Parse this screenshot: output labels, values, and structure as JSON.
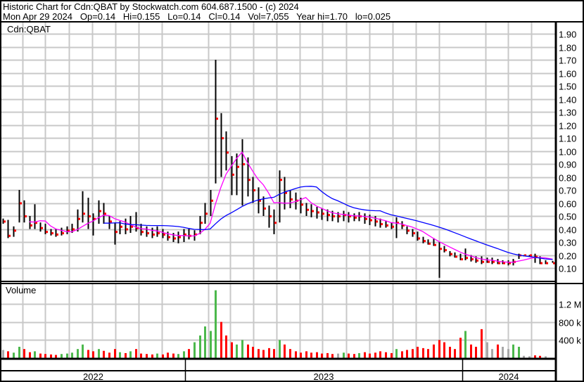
{
  "header": {
    "title": "Historic Chart for Cdn:QBAT by Stockwatch.com 604.687.1500 - (c) 2024",
    "quote": "Mon Apr 29 2024   Op=0.14   Hi=0.155   Lo=0.14   Cl=0.14   Vol=7,055   Year hi=1.70   lo=0.025"
  },
  "chart_data": {
    "type": "ohlc-with-volume",
    "symbol_label": "Cdn:QBAT",
    "volume_label": "Volume",
    "price_axis": {
      "ticks": [
        "0.10",
        "0.20",
        "0.30",
        "0.40",
        "0.50",
        "0.60",
        "0.70",
        "0.80",
        "0.90",
        "1.00",
        "1.10",
        "1.20",
        "1.30",
        "1.40",
        "1.50",
        "1.60",
        "1.70",
        "1.80",
        "1.90"
      ],
      "range": [
        0.1,
        1.9
      ],
      "position": "right"
    },
    "volume_axis": {
      "ticks": [
        {
          "value": 400000,
          "label": "400 k"
        },
        {
          "value": 800000,
          "label": "800 k"
        },
        {
          "value": 1200000,
          "label": "1.2 M"
        }
      ]
    },
    "x_axis": {
      "years": [
        "2022",
        "2023",
        "2024"
      ],
      "range": [
        "2022-05-06",
        "2024-04-29"
      ]
    },
    "grid": true,
    "colors": {
      "price_bar": "#000000",
      "close_mark": "#ff0000",
      "ma_short": "#ff00ff",
      "ma_long": "#0000ff",
      "volume_up": "#4cb84c",
      "volume_down": "#ff0000",
      "volume_flat": "#a8a8a8",
      "grid": "#c8c8c8"
    },
    "moving_averages": [
      {
        "color": "ma_short",
        "weeks": 6
      },
      {
        "color": "ma_long",
        "weeks": 20
      }
    ],
    "columns": [
      "date",
      "high",
      "low",
      "close",
      "volume"
    ],
    "rows": [
      [
        "2022-05-06",
        0.48,
        0.44,
        0.46,
        180000
      ],
      [
        "2022-05-13",
        0.47,
        0.33,
        0.35,
        150000
      ],
      [
        "2022-05-20",
        0.42,
        0.34,
        0.39,
        120000
      ],
      [
        "2022-05-27",
        0.7,
        0.45,
        0.6,
        250000
      ],
      [
        "2022-06-03",
        0.62,
        0.45,
        0.5,
        200000
      ],
      [
        "2022-06-10",
        0.5,
        0.4,
        0.43,
        130000
      ],
      [
        "2022-06-17",
        0.59,
        0.4,
        0.45,
        150000
      ],
      [
        "2022-06-24",
        0.45,
        0.38,
        0.41,
        100000
      ],
      [
        "2022-07-01",
        0.44,
        0.36,
        0.38,
        90000
      ],
      [
        "2022-07-08",
        0.4,
        0.35,
        0.37,
        80000
      ],
      [
        "2022-07-15",
        0.4,
        0.34,
        0.36,
        70000
      ],
      [
        "2022-07-22",
        0.41,
        0.35,
        0.37,
        90000
      ],
      [
        "2022-07-29",
        0.42,
        0.36,
        0.39,
        100000
      ],
      [
        "2022-08-05",
        0.44,
        0.37,
        0.4,
        120000
      ],
      [
        "2022-08-12",
        0.55,
        0.38,
        0.48,
        200000
      ],
      [
        "2022-08-19",
        0.69,
        0.45,
        0.52,
        300000
      ],
      [
        "2022-08-26",
        0.64,
        0.4,
        0.5,
        180000
      ],
      [
        "2022-09-02",
        0.52,
        0.35,
        0.48,
        150000
      ],
      [
        "2022-09-09",
        0.62,
        0.44,
        0.54,
        200000
      ],
      [
        "2022-09-16",
        0.6,
        0.44,
        0.52,
        160000
      ],
      [
        "2022-09-23",
        0.5,
        0.4,
        0.46,
        120000
      ],
      [
        "2022-09-30",
        0.45,
        0.28,
        0.38,
        200000
      ],
      [
        "2022-10-07",
        0.46,
        0.36,
        0.42,
        130000
      ],
      [
        "2022-10-14",
        0.48,
        0.36,
        0.4,
        110000
      ],
      [
        "2022-10-21",
        0.5,
        0.37,
        0.42,
        150000
      ],
      [
        "2022-10-28",
        0.53,
        0.38,
        0.41,
        200000
      ],
      [
        "2022-11-04",
        0.44,
        0.35,
        0.38,
        100000
      ],
      [
        "2022-11-11",
        0.42,
        0.34,
        0.37,
        90000
      ],
      [
        "2022-11-18",
        0.41,
        0.33,
        0.36,
        80000
      ],
      [
        "2022-11-25",
        0.42,
        0.34,
        0.37,
        100000
      ],
      [
        "2022-12-02",
        0.4,
        0.33,
        0.36,
        80000
      ],
      [
        "2022-12-09",
        0.38,
        0.31,
        0.34,
        120000
      ],
      [
        "2022-12-16",
        0.37,
        0.3,
        0.33,
        100000
      ],
      [
        "2022-12-23",
        0.38,
        0.29,
        0.34,
        90000
      ],
      [
        "2022-12-30",
        0.4,
        0.3,
        0.36,
        150000
      ],
      [
        "2023-01-06",
        0.4,
        0.32,
        0.35,
        200000
      ],
      [
        "2023-01-13",
        0.39,
        0.31,
        0.36,
        350000
      ],
      [
        "2023-01-20",
        0.5,
        0.36,
        0.45,
        500000
      ],
      [
        "2023-01-27",
        0.6,
        0.44,
        0.52,
        700000
      ],
      [
        "2023-02-03",
        0.7,
        0.5,
        0.62,
        600000
      ],
      [
        "2023-02-10",
        1.7,
        0.75,
        1.25,
        1500000
      ],
      [
        "2023-02-17",
        1.29,
        0.8,
        1.1,
        800000
      ],
      [
        "2023-02-24",
        1.15,
        0.85,
        0.99,
        500000
      ],
      [
        "2023-03-03",
        0.96,
        0.66,
        0.82,
        350000
      ],
      [
        "2023-03-10",
        0.98,
        0.66,
        0.88,
        300000
      ],
      [
        "2023-03-17",
        1.09,
        0.58,
        0.9,
        400000
      ],
      [
        "2023-03-24",
        0.95,
        0.65,
        0.78,
        300000
      ],
      [
        "2023-03-31",
        0.8,
        0.6,
        0.7,
        250000
      ],
      [
        "2023-04-07",
        0.72,
        0.52,
        0.62,
        200000
      ],
      [
        "2023-04-14",
        0.65,
        0.5,
        0.56,
        180000
      ],
      [
        "2023-04-21",
        0.58,
        0.41,
        0.5,
        220000
      ],
      [
        "2023-04-28",
        0.55,
        0.36,
        0.45,
        200000
      ],
      [
        "2023-05-05",
        0.85,
        0.45,
        0.78,
        400000
      ],
      [
        "2023-05-12",
        0.8,
        0.55,
        0.68,
        300000
      ],
      [
        "2023-05-19",
        0.7,
        0.56,
        0.63,
        200000
      ],
      [
        "2023-05-26",
        0.68,
        0.55,
        0.62,
        150000
      ],
      [
        "2023-06-02",
        0.64,
        0.52,
        0.59,
        120000
      ],
      [
        "2023-06-09",
        0.6,
        0.5,
        0.55,
        150000
      ],
      [
        "2023-06-16",
        0.59,
        0.49,
        0.54,
        120000
      ],
      [
        "2023-06-23",
        0.57,
        0.48,
        0.53,
        130000
      ],
      [
        "2023-06-30",
        0.56,
        0.47,
        0.52,
        100000
      ],
      [
        "2023-07-07",
        0.55,
        0.46,
        0.51,
        110000
      ],
      [
        "2023-07-14",
        0.54,
        0.46,
        0.5,
        90000
      ],
      [
        "2023-07-21",
        0.53,
        0.45,
        0.5,
        100000
      ],
      [
        "2023-07-28",
        0.54,
        0.46,
        0.51,
        120000
      ],
      [
        "2023-08-04",
        0.53,
        0.45,
        0.5,
        100000
      ],
      [
        "2023-08-11",
        0.52,
        0.46,
        0.49,
        90000
      ],
      [
        "2023-08-18",
        0.53,
        0.46,
        0.5,
        110000
      ],
      [
        "2023-08-25",
        0.52,
        0.44,
        0.48,
        130000
      ],
      [
        "2023-09-01",
        0.51,
        0.43,
        0.47,
        100000
      ],
      [
        "2023-09-08",
        0.5,
        0.42,
        0.46,
        120000
      ],
      [
        "2023-09-15",
        0.48,
        0.41,
        0.44,
        150000
      ],
      [
        "2023-09-22",
        0.46,
        0.41,
        0.43,
        130000
      ],
      [
        "2023-09-29",
        0.45,
        0.4,
        0.42,
        110000
      ],
      [
        "2023-10-06",
        0.49,
        0.33,
        0.45,
        200000
      ],
      [
        "2023-10-13",
        0.46,
        0.4,
        0.43,
        150000
      ],
      [
        "2023-10-20",
        0.42,
        0.36,
        0.39,
        180000
      ],
      [
        "2023-10-27",
        0.4,
        0.34,
        0.37,
        200000
      ],
      [
        "2023-11-03",
        0.38,
        0.31,
        0.33,
        250000
      ],
      [
        "2023-11-10",
        0.34,
        0.29,
        0.31,
        220000
      ],
      [
        "2023-11-17",
        0.32,
        0.28,
        0.29,
        200000
      ],
      [
        "2023-11-24",
        0.33,
        0.27,
        0.28,
        300000
      ],
      [
        "2023-12-01",
        0.3,
        0.025,
        0.25,
        400000
      ],
      [
        "2023-12-08",
        0.27,
        0.22,
        0.24,
        350000
      ],
      [
        "2023-12-15",
        0.23,
        0.19,
        0.21,
        250000
      ],
      [
        "2023-12-22",
        0.22,
        0.18,
        0.19,
        200000
      ],
      [
        "2023-12-29",
        0.21,
        0.16,
        0.17,
        450000
      ],
      [
        "2024-01-05",
        0.25,
        0.16,
        0.18,
        600000
      ],
      [
        "2024-01-12",
        0.2,
        0.15,
        0.17,
        300000
      ],
      [
        "2024-01-19",
        0.19,
        0.14,
        0.16,
        250000
      ],
      [
        "2024-01-26",
        0.19,
        0.13,
        0.15,
        640000
      ],
      [
        "2024-02-02",
        0.18,
        0.14,
        0.15,
        350000
      ],
      [
        "2024-02-09",
        0.18,
        0.13,
        0.15,
        200000
      ],
      [
        "2024-02-16",
        0.17,
        0.13,
        0.14,
        300000
      ],
      [
        "2024-02-23",
        0.16,
        0.13,
        0.14,
        250000
      ],
      [
        "2024-03-01",
        0.16,
        0.12,
        0.14,
        200000
      ],
      [
        "2024-03-08",
        0.17,
        0.12,
        0.15,
        300000
      ],
      [
        "2024-03-15",
        0.21,
        0.17,
        0.2,
        250000
      ],
      [
        "2024-03-22",
        0.2,
        0.19,
        0.2,
        50000
      ],
      [
        "2024-03-29",
        0.2,
        0.19,
        0.2,
        40000
      ],
      [
        "2024-04-05",
        0.21,
        0.14,
        0.19,
        60000
      ],
      [
        "2024-04-12",
        0.19,
        0.13,
        0.14,
        50000
      ],
      [
        "2024-04-19",
        0.16,
        0.13,
        0.14,
        40000
      ],
      [
        "2024-04-29",
        0.155,
        0.14,
        0.14,
        7055
      ]
    ]
  }
}
